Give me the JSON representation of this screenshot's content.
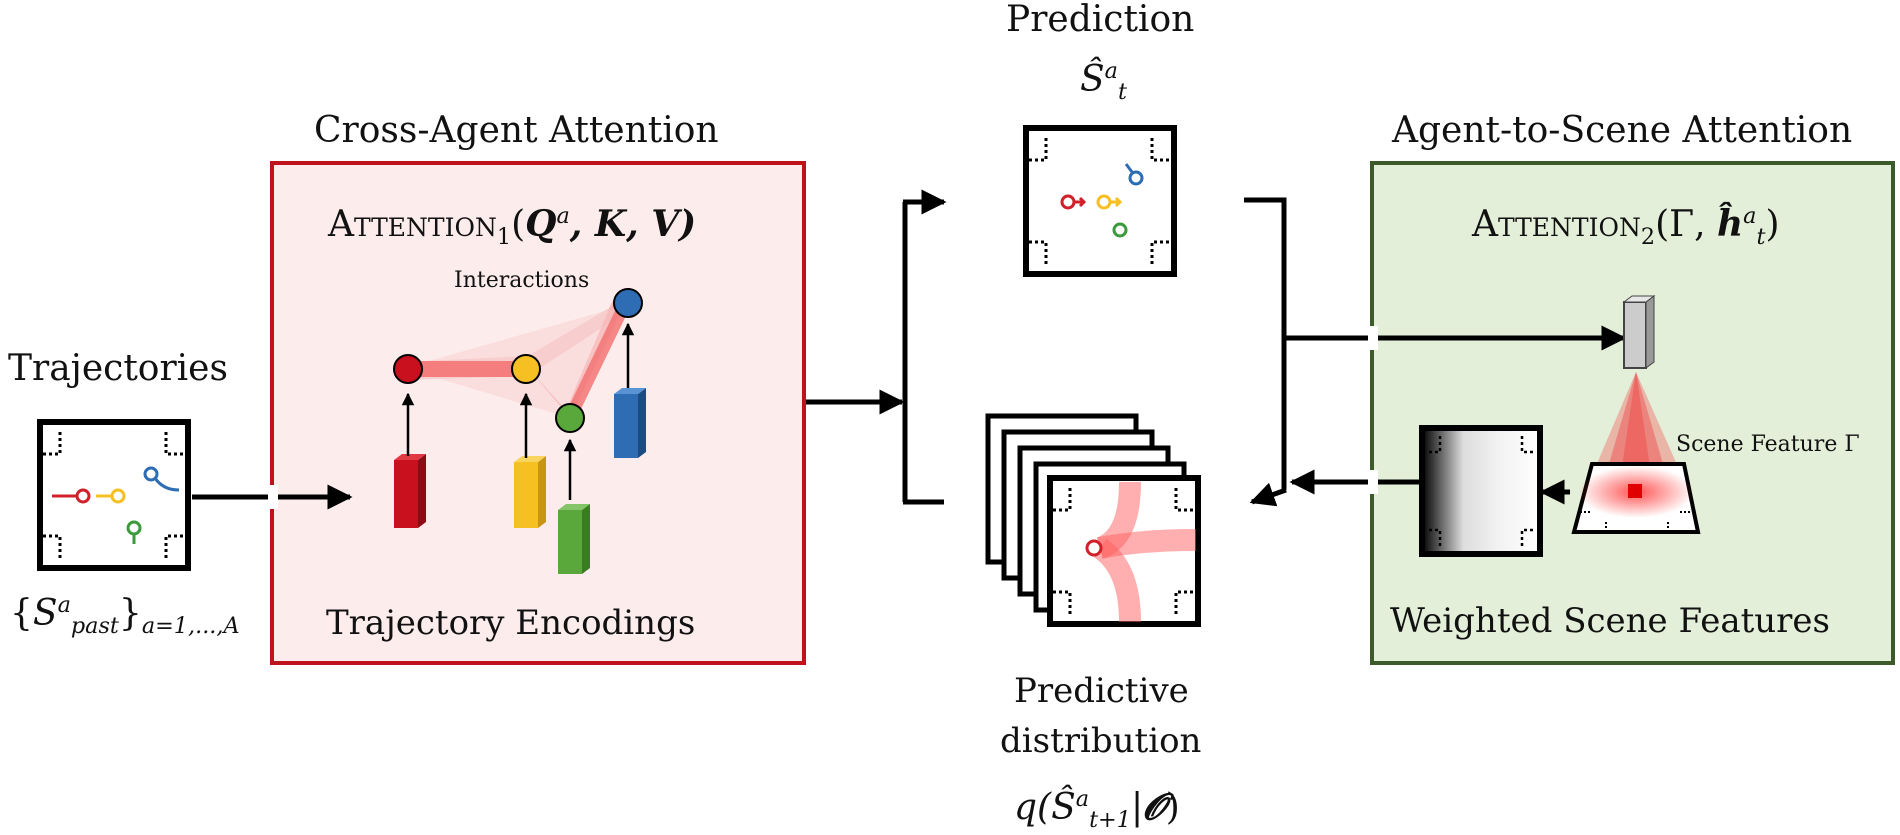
{
  "titles": {
    "cross_agent": "Cross-Agent Attention",
    "agent_to_scene": "Agent-to-Scene Attention",
    "trajectories": "Trajectories",
    "prediction": "Prediction"
  },
  "labels": {
    "interactions": "Interactions",
    "trajectory_encodings": "Trajectory Encodings",
    "weighted_scene_features": "Weighted Scene Features",
    "scene_feature": "Scene Feature Γ",
    "predictive": "Predictive",
    "distribution": "distribution"
  },
  "formulas": {
    "attention1_name": "Attention",
    "attention1_sub": "1",
    "attention1_args_open": "(",
    "attention1_q": "Q",
    "attention1_q_sup": "a",
    "attention1_kv": ", K, V)",
    "attention2_name": "Attention",
    "attention2_sub": "2",
    "attention2_args": "(Γ, ",
    "attention2_h": "ĥ",
    "attention2_h_sup": "a",
    "attention2_h_sub": "t",
    "attention2_close": ")",
    "pred_s": "Ŝ",
    "pred_sup": "a",
    "pred_sub": "t",
    "past_open": "{",
    "past_s": "S",
    "past_sup": "a",
    "past_sub": "past",
    "past_close": "}",
    "past_range": "a=1,...,A",
    "q_open": "q(",
    "q_s": "Ŝ",
    "q_sup": "a",
    "q_sub": "t+1",
    "q_mid": "|",
    "q_o": "𝓞",
    "q_close": ")"
  },
  "colors": {
    "cross_agent_border": "#c0121c",
    "cross_agent_fill": "#fcecec",
    "scene_border": "#3c5a2a",
    "scene_fill": "#e3efd9",
    "agent_red": "#c8101e",
    "agent_yellow": "#f6c022",
    "agent_green": "#5aa83c",
    "agent_blue": "#2e6db4",
    "attention_red": "#f04a4a"
  }
}
